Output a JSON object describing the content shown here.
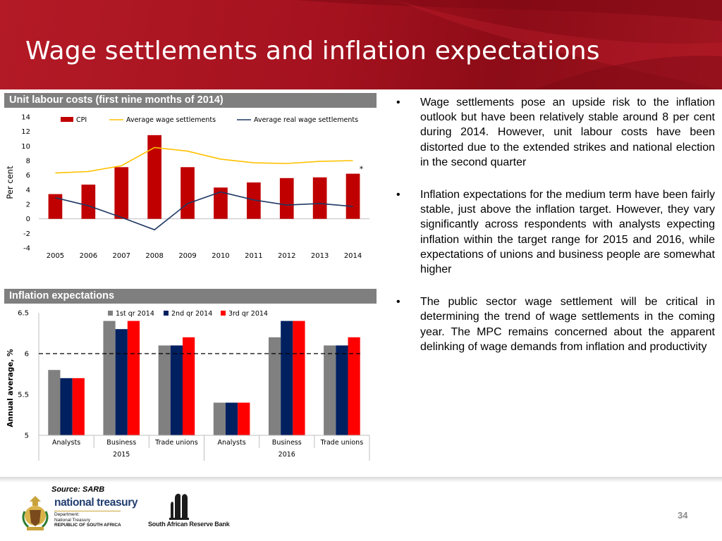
{
  "slide": {
    "title": "Wage settlements and inflation expectations",
    "page_number": "34",
    "source": "Source: SARB",
    "logos": {
      "national_treasury": {
        "name": "national treasury",
        "line1": "Department:",
        "line2": "National Treasury",
        "line3": "REPUBLIC OF SOUTH AFRICA"
      },
      "sarb": {
        "name": "South African Reserve Bank"
      }
    },
    "bullets": [
      "Wage settlements pose an upside risk to the inflation outlook but have been relatively stable around 8 per cent during 2014.  However, unit labour costs have been distorted due to the extended strikes and national election in the second quarter",
      "Inflation expectations for the medium term have been fairly stable, just above the inflation target. However, they vary significantly across respondents with analysts expecting inflation within the target range for 2015 and 2016, while expectations of unions and business people are somewhat higher",
      "The public sector wage settlement will be critical in determining the trend of wage settlements in the coming year. The MPC remains concerned about the apparent delinking of wage demands from inflation and productivity"
    ],
    "colors": {
      "header_red": "#a5121f",
      "cpi_bar": "#c00000",
      "wage_line": "#ffc000",
      "real_wage_line": "#1f3864",
      "q1": "#808080",
      "q2": "#002060",
      "q3": "#ff0000",
      "panel_bar": "#7f7f7f"
    }
  },
  "chart_data": [
    {
      "type": "bar",
      "title": "Unit labour costs (first nine months of 2014)",
      "ylabel": "Per cent",
      "xlabel": "",
      "ylim": [
        -4,
        14
      ],
      "yticks": [
        -4,
        -2,
        0,
        2,
        4,
        6,
        8,
        10,
        12,
        14
      ],
      "categories": [
        "2005",
        "2006",
        "2007",
        "2008",
        "2009",
        "2010",
        "2011",
        "2012",
        "2013",
        "2014"
      ],
      "series": [
        {
          "name": "CPI",
          "kind": "bar",
          "values": [
            3.4,
            4.7,
            7.1,
            11.5,
            7.1,
            4.3,
            5.0,
            5.6,
            5.7,
            6.2
          ]
        },
        {
          "name": "Average wage settlements",
          "kind": "line",
          "values": [
            6.3,
            6.5,
            7.3,
            9.8,
            9.3,
            8.2,
            7.7,
            7.6,
            7.9,
            8.0
          ]
        },
        {
          "name": "Average real wage settlements",
          "kind": "line",
          "values": [
            2.9,
            1.8,
            0.2,
            -1.5,
            2.1,
            3.7,
            2.6,
            1.9,
            2.1,
            1.7
          ]
        }
      ],
      "annotation": "*",
      "legend_position": "top",
      "grid": false
    },
    {
      "type": "bar",
      "title": "Inflation expectations",
      "ylabel": "Annual average, %",
      "xlabel": "",
      "ylim": [
        5,
        6.5
      ],
      "yticks": [
        5,
        5.5,
        6,
        6.5
      ],
      "reference_line": 6,
      "groups": [
        "2015",
        "2016"
      ],
      "categories": [
        "Analysts",
        "Business",
        "Trade unions",
        "Analysts",
        "Business",
        "Trade unions"
      ],
      "series": [
        {
          "name": "1st qr 2014",
          "values": [
            5.8,
            6.4,
            6.1,
            5.4,
            6.2,
            6.1
          ]
        },
        {
          "name": "2nd qr 2014",
          "values": [
            5.7,
            6.3,
            6.1,
            5.4,
            6.4,
            6.1
          ]
        },
        {
          "name": "3rd qr 2014",
          "values": [
            5.7,
            6.4,
            6.2,
            5.4,
            6.4,
            6.2
          ]
        }
      ],
      "legend_position": "top",
      "grid": false
    }
  ]
}
